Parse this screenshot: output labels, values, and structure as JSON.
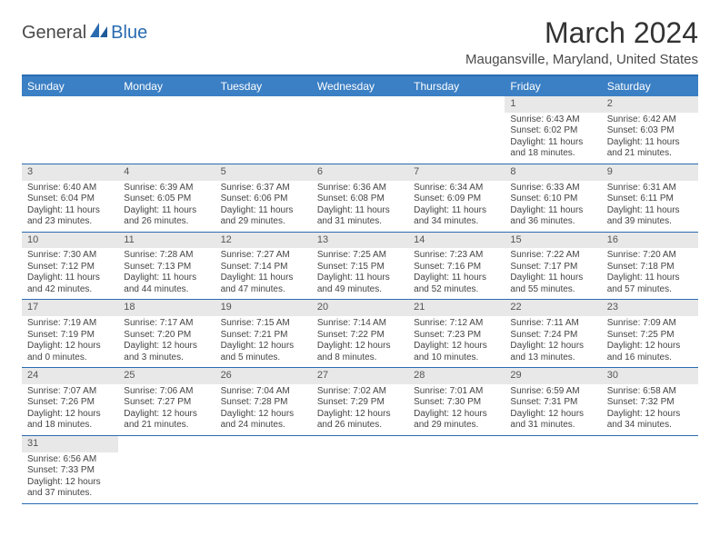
{
  "logo": {
    "text1": "General",
    "text2": "Blue"
  },
  "title": "March 2024",
  "location": "Maugansville, Maryland, United States",
  "colors": {
    "header_bg": "#3b7fc4",
    "border": "#2a6bb0",
    "daynum_bg": "#e8e8e8",
    "text": "#333333"
  },
  "day_labels": [
    "Sunday",
    "Monday",
    "Tuesday",
    "Wednesday",
    "Thursday",
    "Friday",
    "Saturday"
  ],
  "weeks": [
    [
      null,
      null,
      null,
      null,
      null,
      {
        "n": "1",
        "sr": "6:43 AM",
        "ss": "6:02 PM",
        "dl": "11 hours and 18 minutes."
      },
      {
        "n": "2",
        "sr": "6:42 AM",
        "ss": "6:03 PM",
        "dl": "11 hours and 21 minutes."
      }
    ],
    [
      {
        "n": "3",
        "sr": "6:40 AM",
        "ss": "6:04 PM",
        "dl": "11 hours and 23 minutes."
      },
      {
        "n": "4",
        "sr": "6:39 AM",
        "ss": "6:05 PM",
        "dl": "11 hours and 26 minutes."
      },
      {
        "n": "5",
        "sr": "6:37 AM",
        "ss": "6:06 PM",
        "dl": "11 hours and 29 minutes."
      },
      {
        "n": "6",
        "sr": "6:36 AM",
        "ss": "6:08 PM",
        "dl": "11 hours and 31 minutes."
      },
      {
        "n": "7",
        "sr": "6:34 AM",
        "ss": "6:09 PM",
        "dl": "11 hours and 34 minutes."
      },
      {
        "n": "8",
        "sr": "6:33 AM",
        "ss": "6:10 PM",
        "dl": "11 hours and 36 minutes."
      },
      {
        "n": "9",
        "sr": "6:31 AM",
        "ss": "6:11 PM",
        "dl": "11 hours and 39 minutes."
      }
    ],
    [
      {
        "n": "10",
        "sr": "7:30 AM",
        "ss": "7:12 PM",
        "dl": "11 hours and 42 minutes."
      },
      {
        "n": "11",
        "sr": "7:28 AM",
        "ss": "7:13 PM",
        "dl": "11 hours and 44 minutes."
      },
      {
        "n": "12",
        "sr": "7:27 AM",
        "ss": "7:14 PM",
        "dl": "11 hours and 47 minutes."
      },
      {
        "n": "13",
        "sr": "7:25 AM",
        "ss": "7:15 PM",
        "dl": "11 hours and 49 minutes."
      },
      {
        "n": "14",
        "sr": "7:23 AM",
        "ss": "7:16 PM",
        "dl": "11 hours and 52 minutes."
      },
      {
        "n": "15",
        "sr": "7:22 AM",
        "ss": "7:17 PM",
        "dl": "11 hours and 55 minutes."
      },
      {
        "n": "16",
        "sr": "7:20 AM",
        "ss": "7:18 PM",
        "dl": "11 hours and 57 minutes."
      }
    ],
    [
      {
        "n": "17",
        "sr": "7:19 AM",
        "ss": "7:19 PM",
        "dl": "12 hours and 0 minutes."
      },
      {
        "n": "18",
        "sr": "7:17 AM",
        "ss": "7:20 PM",
        "dl": "12 hours and 3 minutes."
      },
      {
        "n": "19",
        "sr": "7:15 AM",
        "ss": "7:21 PM",
        "dl": "12 hours and 5 minutes."
      },
      {
        "n": "20",
        "sr": "7:14 AM",
        "ss": "7:22 PM",
        "dl": "12 hours and 8 minutes."
      },
      {
        "n": "21",
        "sr": "7:12 AM",
        "ss": "7:23 PM",
        "dl": "12 hours and 10 minutes."
      },
      {
        "n": "22",
        "sr": "7:11 AM",
        "ss": "7:24 PM",
        "dl": "12 hours and 13 minutes."
      },
      {
        "n": "23",
        "sr": "7:09 AM",
        "ss": "7:25 PM",
        "dl": "12 hours and 16 minutes."
      }
    ],
    [
      {
        "n": "24",
        "sr": "7:07 AM",
        "ss": "7:26 PM",
        "dl": "12 hours and 18 minutes."
      },
      {
        "n": "25",
        "sr": "7:06 AM",
        "ss": "7:27 PM",
        "dl": "12 hours and 21 minutes."
      },
      {
        "n": "26",
        "sr": "7:04 AM",
        "ss": "7:28 PM",
        "dl": "12 hours and 24 minutes."
      },
      {
        "n": "27",
        "sr": "7:02 AM",
        "ss": "7:29 PM",
        "dl": "12 hours and 26 minutes."
      },
      {
        "n": "28",
        "sr": "7:01 AM",
        "ss": "7:30 PM",
        "dl": "12 hours and 29 minutes."
      },
      {
        "n": "29",
        "sr": "6:59 AM",
        "ss": "7:31 PM",
        "dl": "12 hours and 31 minutes."
      },
      {
        "n": "30",
        "sr": "6:58 AM",
        "ss": "7:32 PM",
        "dl": "12 hours and 34 minutes."
      }
    ],
    [
      {
        "n": "31",
        "sr": "6:56 AM",
        "ss": "7:33 PM",
        "dl": "12 hours and 37 minutes."
      },
      null,
      null,
      null,
      null,
      null,
      null
    ]
  ],
  "labels": {
    "sunrise": "Sunrise:",
    "sunset": "Sunset:",
    "daylight": "Daylight:"
  }
}
